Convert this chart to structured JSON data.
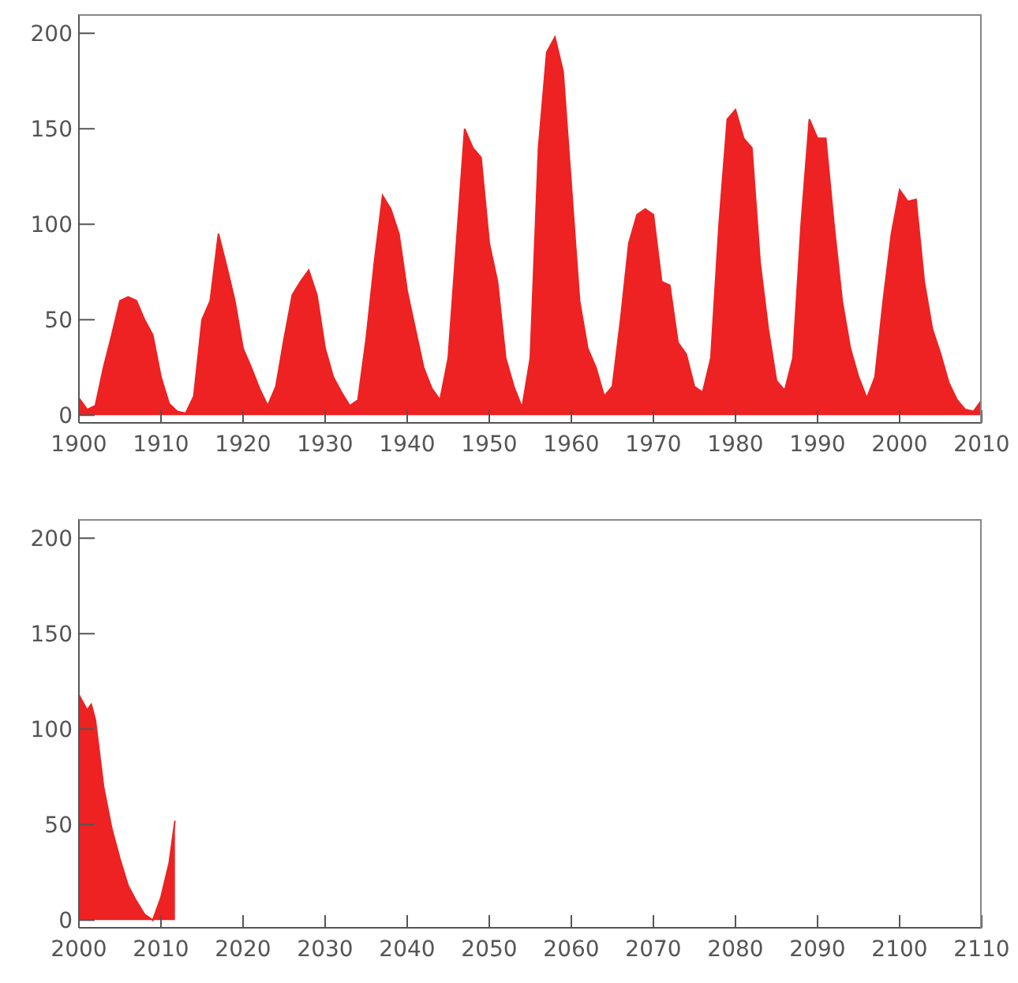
{
  "chart_data": [
    {
      "type": "area",
      "x": [
        1900,
        1901,
        1902,
        1903,
        1904,
        1905,
        1906,
        1907,
        1908,
        1909,
        1910,
        1911,
        1912,
        1913,
        1914,
        1915,
        1916,
        1917,
        1918,
        1919,
        1920,
        1921,
        1922,
        1923,
        1924,
        1925,
        1926,
        1927,
        1928,
        1929,
        1930,
        1931,
        1932,
        1933,
        1934,
        1935,
        1936,
        1937,
        1938,
        1939,
        1940,
        1941,
        1942,
        1943,
        1944,
        1945,
        1946,
        1947,
        1947.5,
        1948,
        1949,
        1950,
        1951,
        1952,
        1953,
        1954,
        1955,
        1956,
        1957,
        1958,
        1959,
        1960,
        1961,
        1962,
        1963,
        1964,
        1965,
        1966,
        1967,
        1968,
        1969,
        1970,
        1971,
        1972,
        1973,
        1974,
        1975,
        1976,
        1977,
        1978,
        1979,
        1980,
        1981,
        1982,
        1983,
        1984,
        1985,
        1986,
        1987,
        1988,
        1989,
        1990,
        1991,
        1992,
        1993,
        1994,
        1995,
        1996,
        1997,
        1998,
        1999,
        2000,
        2001,
        2002,
        2003,
        2004,
        2005,
        2006,
        2007,
        2008,
        2009,
        2010
      ],
      "series": [
        {
          "color": "#ee2222",
          "values": [
            9,
            3,
            5,
            25,
            42,
            60,
            62,
            60,
            50,
            42,
            20,
            6,
            2,
            1,
            10,
            50,
            60,
            95,
            78,
            60,
            35,
            25,
            14,
            5,
            15,
            40,
            63,
            70,
            76,
            63,
            35,
            20,
            12,
            5,
            8,
            40,
            80,
            115,
            108,
            95,
            65,
            45,
            25,
            14,
            8,
            30,
            90,
            150,
            145,
            140,
            135,
            90,
            70,
            30,
            15,
            4,
            30,
            140,
            190,
            198,
            180,
            120,
            60,
            35,
            25,
            10,
            15,
            50,
            90,
            105,
            108,
            105,
            70,
            68,
            38,
            32,
            15,
            12,
            30,
            100,
            155,
            160,
            145,
            140,
            80,
            45,
            18,
            13,
            30,
            100,
            155,
            145,
            145,
            100,
            60,
            35,
            20,
            9,
            20,
            60,
            95,
            118,
            112,
            113,
            70,
            45,
            32,
            17,
            8,
            3,
            2,
            8
          ]
        }
      ],
      "xlim": [
        1900,
        2010
      ],
      "xticks": [
        1900,
        1910,
        1920,
        1930,
        1940,
        1950,
        1960,
        1970,
        1980,
        1990,
        2000,
        2010
      ],
      "ylim": [
        -4,
        210
      ],
      "yticks": [
        0,
        50,
        100,
        150,
        200
      ],
      "grid": false,
      "legend": false
    },
    {
      "type": "area",
      "x": [
        2000,
        2001,
        2001.5,
        2002,
        2003,
        2004,
        2005,
        2006,
        2007,
        2008,
        2009,
        2010,
        2011,
        2011.7
      ],
      "series": [
        {
          "color": "#ee2222",
          "values": [
            118,
            110,
            113,
            105,
            70,
            48,
            32,
            18,
            10,
            3,
            0,
            12,
            30,
            52
          ]
        }
      ],
      "xlim": [
        2000,
        2110
      ],
      "xticks": [
        2000,
        2010,
        2020,
        2030,
        2040,
        2050,
        2060,
        2070,
        2080,
        2090,
        2100,
        2110
      ],
      "ylim": [
        -4,
        210
      ],
      "yticks": [
        0,
        50,
        100,
        150,
        200
      ],
      "grid": false,
      "legend": false
    }
  ]
}
